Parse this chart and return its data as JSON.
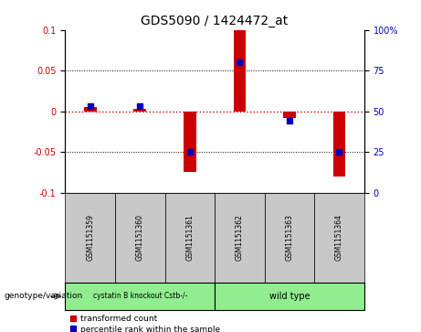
{
  "title": "GDS5090 / 1424472_at",
  "samples": [
    "GSM1151359",
    "GSM1151360",
    "GSM1151361",
    "GSM1151362",
    "GSM1151363",
    "GSM1151364"
  ],
  "transformed_count": [
    0.005,
    0.003,
    -0.075,
    0.1,
    -0.008,
    -0.08
  ],
  "percentile_rank": [
    53,
    53,
    25,
    80,
    44,
    25
  ],
  "group1_label": "cystatin B knockout Cstb-/-",
  "group2_label": "wild type",
  "group_color": "#90EE90",
  "ylim_left": [
    -0.1,
    0.1
  ],
  "ylim_right": [
    0,
    100
  ],
  "yticks_left": [
    -0.1,
    -0.05,
    0.0,
    0.05,
    0.1
  ],
  "yticks_right": [
    0,
    25,
    50,
    75,
    100
  ],
  "bar_color": "#CC0000",
  "dot_color": "#0000BB",
  "zero_line_color": "#CC0000",
  "grid_color": "#000000",
  "bg_color": "#FFFFFF",
  "sample_box_color": "#C8C8C8",
  "group_label_text": "genotype/variation",
  "legend1": "transformed count",
  "legend2": "percentile rank within the sample"
}
